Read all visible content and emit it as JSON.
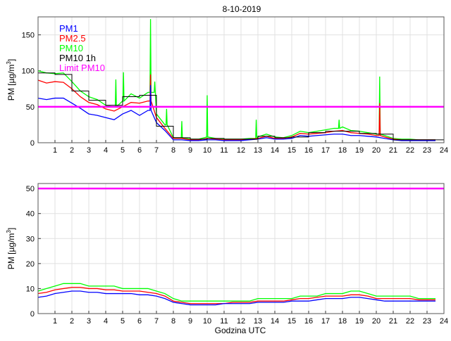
{
  "chart_data": [
    {
      "type": "line",
      "title": "8-10-2019",
      "xlabel": "",
      "ylabel": "PM [µg/m3]",
      "ylabel_parts": {
        "base": "PM [µg/m",
        "sup": "3",
        "end": "]"
      },
      "xlim": [
        0,
        24
      ],
      "ylim": [
        0,
        175
      ],
      "xticks": [
        1,
        2,
        3,
        4,
        5,
        6,
        7,
        8,
        9,
        10,
        11,
        12,
        13,
        14,
        15,
        16,
        17,
        18,
        19,
        20,
        21,
        22,
        23,
        24
      ],
      "yticks": [
        0,
        50,
        100,
        150
      ],
      "grid": true,
      "legend_position": "top-left",
      "x": [
        0,
        0.5,
        1,
        1.5,
        2,
        2.5,
        3,
        3.5,
        4,
        4.5,
        5,
        5.5,
        6,
        6.5,
        7,
        7.5,
        8,
        8.5,
        9,
        9.5,
        10,
        10.5,
        11,
        11.5,
        12,
        12.5,
        13,
        13.5,
        14,
        14.5,
        15,
        15.5,
        16,
        16.5,
        17,
        17.5,
        18,
        18.5,
        19,
        19.5,
        20,
        20.5,
        21,
        21.5,
        22,
        22.5,
        23,
        23.5
      ],
      "series": [
        {
          "name": "PM1",
          "color": "#0000ff",
          "values": [
            62,
            60,
            62,
            62,
            55,
            48,
            40,
            38,
            35,
            32,
            40,
            45,
            38,
            45,
            28,
            17,
            4,
            4,
            3,
            3,
            4,
            4,
            3,
            3,
            3,
            4,
            5,
            7,
            5,
            5,
            6,
            10,
            9,
            10,
            11,
            12,
            12,
            10,
            10,
            9,
            8,
            6,
            4,
            3,
            3,
            3,
            3,
            3
          ],
          "spikes": [
            [
              6.65,
              80
            ]
          ]
        },
        {
          "name": "PM2.5",
          "color": "#ff0000",
          "values": [
            87,
            83,
            85,
            84,
            75,
            64,
            56,
            53,
            47,
            44,
            50,
            56,
            55,
            58,
            35,
            20,
            6,
            6,
            4,
            4,
            6,
            5,
            4,
            4,
            4,
            5,
            6,
            9,
            6,
            6,
            8,
            13,
            12,
            13,
            14,
            16,
            17,
            14,
            13,
            12,
            10,
            8,
            5,
            4,
            4,
            4,
            4,
            4
          ],
          "spikes": [
            [
              6.65,
              95
            ],
            [
              20.2,
              55
            ]
          ]
        },
        {
          "name": "PM10",
          "color": "#00ff00",
          "values": [
            100,
            97,
            96,
            97,
            85,
            72,
            64,
            60,
            52,
            50,
            58,
            68,
            62,
            70,
            40,
            25,
            7,
            7,
            5,
            5,
            8,
            6,
            5,
            5,
            5,
            6,
            8,
            12,
            8,
            7,
            10,
            16,
            14,
            16,
            18,
            20,
            22,
            17,
            16,
            14,
            12,
            10,
            6,
            5,
            5,
            4,
            4,
            4
          ],
          "spikes": [
            [
              4.6,
              88
            ],
            [
              5.05,
              98
            ],
            [
              6.65,
              172
            ],
            [
              6.9,
              85
            ],
            [
              7.6,
              47
            ],
            [
              8.5,
              30
            ],
            [
              10,
              66
            ],
            [
              12.9,
              32
            ],
            [
              17.8,
              32
            ],
            [
              20.2,
              92
            ]
          ]
        }
      ],
      "hourly": {
        "name": "PM10 1h",
        "color": "#000000",
        "values": [
          97,
          95,
          72,
          59,
          52,
          64,
          66,
          23,
          7,
          5,
          6,
          5,
          5,
          9,
          7,
          8,
          14,
          16,
          16,
          13,
          12,
          4,
          4,
          4
        ]
      },
      "limit": {
        "name": "Limit PM10",
        "color": "#ff00ff",
        "value": 50
      }
    },
    {
      "type": "line",
      "title": "",
      "xlabel": "Godzina UTC",
      "ylabel": "PM [µg/m3]",
      "ylabel_parts": {
        "base": "PM [µg/m",
        "sup": "3",
        "end": "]"
      },
      "xlim": [
        0,
        24
      ],
      "ylim": [
        0,
        52
      ],
      "xticks": [
        1,
        2,
        3,
        4,
        5,
        6,
        7,
        8,
        9,
        10,
        11,
        12,
        13,
        14,
        15,
        16,
        17,
        18,
        19,
        20,
        21,
        22,
        23,
        24
      ],
      "yticks": [
        0,
        10,
        20,
        30,
        40,
        50
      ],
      "grid": true,
      "x": [
        0,
        0.5,
        1,
        1.5,
        2,
        2.5,
        3,
        3.5,
        4,
        4.5,
        5,
        5.5,
        6,
        6.5,
        7,
        7.5,
        8,
        8.5,
        9,
        9.5,
        10,
        10.5,
        11,
        11.5,
        12,
        12.5,
        13,
        13.5,
        14,
        14.5,
        15,
        15.5,
        16,
        16.5,
        17,
        17.5,
        18,
        18.5,
        19,
        19.5,
        20,
        20.5,
        21,
        21.5,
        22,
        22.5,
        23,
        23.5
      ],
      "series": [
        {
          "name": "PM10",
          "color": "#00ff00",
          "values": [
            9,
            10,
            11,
            12,
            12,
            12,
            11,
            11,
            11,
            11,
            10,
            10,
            10,
            10,
            9,
            8,
            6,
            5,
            5,
            5,
            5,
            5,
            5,
            5,
            5,
            5,
            6,
            6,
            6,
            6,
            6,
            7,
            7,
            7,
            8,
            8,
            8,
            9,
            9,
            8,
            7,
            7,
            7,
            7,
            7,
            6,
            6,
            6
          ]
        },
        {
          "name": "PM2.5",
          "color": "#ff0000",
          "values": [
            8,
            8.5,
            9.5,
            10,
            10.5,
            10.5,
            10,
            10,
            9.5,
            9.5,
            9,
            9,
            9,
            8.5,
            8,
            7,
            5,
            4.5,
            4,
            4,
            4,
            4,
            4,
            4.5,
            4.5,
            4.5,
            5,
            5,
            5,
            5,
            5.5,
            6,
            6,
            6.5,
            7,
            7,
            7,
            7.5,
            7.5,
            7,
            6,
            6,
            6,
            6,
            6,
            5.5,
            5.5,
            5.5
          ]
        },
        {
          "name": "PM1",
          "color": "#0000ff",
          "values": [
            6.5,
            7,
            8,
            8.5,
            9,
            9,
            8.5,
            8.5,
            8,
            8,
            8,
            8,
            7.5,
            7.5,
            7,
            6,
            4.5,
            4,
            3.5,
            3.5,
            3.5,
            3.5,
            4,
            4,
            4,
            4,
            4.5,
            4.5,
            4.5,
            4.5,
            5,
            5,
            5,
            5.5,
            6,
            6,
            6,
            6.5,
            6.5,
            6,
            5.5,
            5,
            5,
            5,
            5,
            5,
            5,
            5
          ]
        }
      ],
      "limit": {
        "name": "Limit PM10",
        "color": "#ff00ff",
        "value": 50
      }
    }
  ]
}
